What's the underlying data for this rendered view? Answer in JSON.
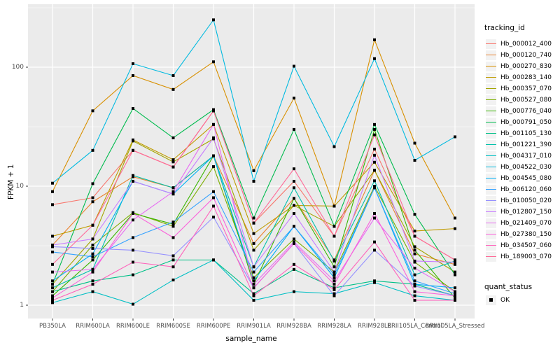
{
  "chart": {
    "panel_bg_color": "#EBEBEB",
    "grid_color": "#FFFFFF",
    "tick_color": "#333333",
    "axis_text_color": "#4D4D4D",
    "y_ticks": [
      {
        "label": "100",
        "value": 100
      },
      {
        "label": "10",
        "value": 10
      },
      {
        "label": "1",
        "value": 1
      }
    ],
    "y_minor_ticks": [
      3.162,
      31.62,
      316.2
    ]
  },
  "legend": {
    "color_title": "tracking_id",
    "shape_title": "quant_status",
    "shape_entries": [
      {
        "label": "OK"
      }
    ]
  },
  "chart_data": {
    "type": "line",
    "title": "",
    "xlabel": "sample_name",
    "ylabel": "FPKM + 1",
    "yscale": "log10",
    "ylim": [
      0.8,
      340
    ],
    "grid": true,
    "legend_position": "right",
    "point_shape": "filled-square",
    "point_color": "#000000",
    "categories": [
      "PB350LA",
      "RRIM600LA",
      "RRIM600LE",
      "RRIM600SE",
      "RRIM600PE",
      "RRIM901LA",
      "RRIM928BA",
      "RRIM928LA",
      "RRIM928LE",
      "RRII105LA_Control",
      "RRII105LA_Stressed"
    ],
    "series": [
      {
        "name": "Hb_000012_400",
        "color": "#F8766D",
        "values": [
          7.0,
          8.0,
          20,
          14.5,
          43,
          4.9,
          11,
          3.8,
          20.5,
          3.8,
          2.4
        ]
      },
      {
        "name": "Hb_000120_740",
        "color": "#EA8331",
        "values": [
          3.2,
          7.4,
          12,
          9.7,
          18,
          3.3,
          7.9,
          2.4,
          13.6,
          2.7,
          2.2
        ]
      },
      {
        "name": "Hb_000270_830",
        "color": "#D89000",
        "values": [
          9.0,
          43,
          85,
          65,
          111,
          13.5,
          55,
          6.8,
          170,
          23,
          5.4
        ]
      },
      {
        "name": "Hb_000283_140",
        "color": "#C09B00",
        "values": [
          3.8,
          4.7,
          24.5,
          16.7,
          33,
          4.0,
          6.9,
          6.8,
          15.9,
          4.2,
          4.4
        ]
      },
      {
        "name": "Hb_000357_070",
        "color": "#A3A500",
        "values": [
          1.5,
          3.6,
          24,
          16,
          25,
          2.9,
          6.9,
          4.6,
          13.6,
          3.1,
          1.9
        ]
      },
      {
        "name": "Hb_000527_080",
        "color": "#7CAE00",
        "values": [
          1.3,
          3.2,
          6.0,
          4.6,
          14.6,
          1.7,
          3.6,
          1.9,
          10,
          2.3,
          1.3
        ]
      },
      {
        "name": "Hb_000776_040",
        "color": "#39B600",
        "values": [
          1.2,
          2.4,
          5.9,
          4.8,
          18,
          1.5,
          7.9,
          2.1,
          30,
          2.9,
          1.15
        ]
      },
      {
        "name": "Hb_000791_050",
        "color": "#00BB4E",
        "values": [
          1.5,
          10.5,
          45,
          25.5,
          44,
          5.4,
          30,
          4.6,
          33,
          5.8,
          1.8
        ]
      },
      {
        "name": "Hb_001105_130",
        "color": "#00C087",
        "values": [
          1.3,
          1.6,
          1.8,
          2.4,
          2.4,
          1.25,
          2.0,
          1.4,
          1.6,
          1.5,
          1.2
        ]
      },
      {
        "name": "Hb_001221_390",
        "color": "#00C1AB",
        "values": [
          1.4,
          2.0,
          12.3,
          9.7,
          18,
          2.1,
          9.7,
          2.35,
          11.1,
          1.8,
          2.35
        ]
      },
      {
        "name": "Hb_004317_010",
        "color": "#00BFC4",
        "values": [
          1.05,
          1.3,
          1.02,
          1.63,
          2.4,
          1.1,
          1.3,
          1.25,
          1.55,
          1.2,
          1.1
        ]
      },
      {
        "name": "Hb_004522_030",
        "color": "#00BAE0",
        "values": [
          10.6,
          20,
          107,
          85,
          250,
          11,
          102,
          21.5,
          118,
          16.5,
          26
        ]
      },
      {
        "name": "Hb_004545_080",
        "color": "#00B0F6",
        "values": [
          1.6,
          2.7,
          11,
          8.6,
          18,
          1.6,
          4.6,
          1.7,
          9.7,
          1.5,
          1.4
        ]
      },
      {
        "name": "Hb_006120_060",
        "color": "#35A2FF",
        "values": [
          2.8,
          2.55,
          3.7,
          5.0,
          9.0,
          1.9,
          4.6,
          1.8,
          9.7,
          1.6,
          1.25
        ]
      },
      {
        "name": "Hb_010050_020",
        "color": "#9590FF",
        "values": [
          3.1,
          3.0,
          2.9,
          2.6,
          5.5,
          1.4,
          3.3,
          1.2,
          2.9,
          1.45,
          1.2
        ]
      },
      {
        "name": "Hb_012807_150",
        "color": "#C77CFF",
        "values": [
          3.2,
          3.6,
          11,
          8.6,
          25.5,
          2.1,
          5.9,
          1.9,
          18.2,
          2.35,
          2.3
        ]
      },
      {
        "name": "Hb_021409_070",
        "color": "#E76BF3",
        "values": [
          1.9,
          2.0,
          5.2,
          9.0,
          33,
          1.5,
          3.4,
          1.6,
          5.4,
          2.05,
          1.3
        ]
      },
      {
        "name": "Hb_027380_150",
        "color": "#FA62DB",
        "values": [
          1.15,
          1.9,
          5.9,
          3.7,
          8.0,
          1.4,
          3.3,
          1.5,
          5.9,
          1.3,
          1.2
        ]
      },
      {
        "name": "Hb_034507_060",
        "color": "#FF62BC",
        "values": [
          1.1,
          1.5,
          2.3,
          2.1,
          6.8,
          1.2,
          2.2,
          1.35,
          3.4,
          1.1,
          1.1
        ]
      },
      {
        "name": "Hb_189003_070",
        "color": "#FF6A98",
        "values": [
          2.2,
          4.7,
          20,
          14.5,
          43,
          4.9,
          14,
          3.8,
          27,
          3.8,
          2.4
        ]
      }
    ]
  }
}
